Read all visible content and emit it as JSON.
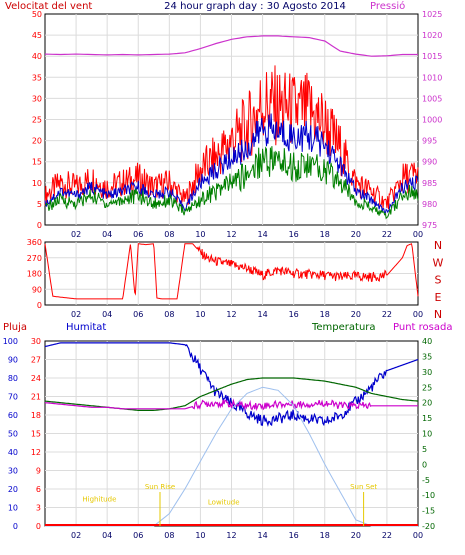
{
  "header": {
    "title": "24 hour graph day : 30 Agosto 2014",
    "left_label": "Velocitat del vent",
    "right_label": "Pressió"
  },
  "colors": {
    "background": "#ffffff",
    "frame": "#000000",
    "grid": "#dcdcdc",
    "wind": "#ff0000",
    "wind_gust": "#ff0000",
    "wind_avg": "#0000cc",
    "wind_low": "#008000",
    "pressure": "#cc33cc",
    "direction": "#ff0000",
    "rain": "#ff0000",
    "humidity": "#0000cc",
    "temperature": "#006600",
    "dewpoint": "#cc00cc",
    "solar": "#9fc0ee",
    "sun_labels": "#e6c800",
    "tick_text": "#000066"
  },
  "time_ticks": [
    "02",
    "04",
    "06",
    "08",
    "10",
    "12",
    "14",
    "16",
    "18",
    "20",
    "22",
    "00"
  ],
  "chart_data": [
    {
      "id": "wind-pressure",
      "type": "line",
      "title": "24 hour graph day : 30 Agosto 2014",
      "ylabel": "Velocitat del vent",
      "y2label": "Pressió",
      "x": [
        0,
        1,
        2,
        3,
        4,
        5,
        6,
        7,
        8,
        9,
        10,
        11,
        12,
        13,
        14,
        15,
        16,
        17,
        18,
        19,
        20,
        21,
        22,
        23,
        24
      ],
      "ylim": [
        0,
        50
      ],
      "y2lim": [
        975,
        1025
      ],
      "y_ticks": [
        "0",
        "5",
        "10",
        "15",
        "20",
        "25",
        "30",
        "35",
        "40",
        "45",
        "50"
      ],
      "y2_ticks": [
        "975",
        "980",
        "985",
        "990",
        "995",
        "1000",
        "1005",
        "1010",
        "1015",
        "1020",
        "1025"
      ],
      "grid": true,
      "series": [
        {
          "role": "gust",
          "values": [
            7,
            10,
            9,
            11,
            9,
            10,
            11,
            9,
            10,
            6,
            13,
            16,
            20,
            23,
            29,
            28,
            27,
            27,
            24,
            18,
            10,
            8,
            5,
            11,
            12
          ]
        },
        {
          "role": "average",
          "values": [
            5,
            8,
            7,
            9,
            7,
            8,
            9,
            7,
            8,
            4,
            10,
            13,
            16,
            18,
            23,
            22,
            21,
            21,
            19,
            14,
            8,
            6,
            3,
            9,
            10
          ]
        },
        {
          "role": "low",
          "values": [
            4,
            6,
            5,
            7,
            5,
            6,
            7,
            5,
            6,
            3,
            6,
            8,
            10,
            12,
            16,
            15,
            14,
            14,
            13,
            10,
            6,
            4,
            2,
            7,
            8
          ]
        },
        {
          "role": "pressure",
          "values": [
            1015.5,
            1015.4,
            1015.5,
            1015.4,
            1015.3,
            1015.4,
            1015.3,
            1015.4,
            1015.5,
            1015.8,
            1016.8,
            1018.0,
            1019.0,
            1019.6,
            1019.8,
            1019.8,
            1019.6,
            1019.4,
            1018.6,
            1016.2,
            1015.5,
            1015.0,
            1015.1,
            1015.4,
            1015.4
          ]
        }
      ]
    },
    {
      "id": "wind-direction",
      "type": "line",
      "x": [
        0,
        0.5,
        1,
        1.5,
        2,
        3,
        4,
        5,
        5.5,
        5.8,
        6,
        6.5,
        7,
        7.2,
        7.5,
        8,
        8.5,
        9,
        9.5,
        10,
        10.5,
        11,
        12,
        13,
        14,
        15,
        16,
        17,
        18,
        19,
        20,
        21,
        22,
        22.5,
        23,
        23.3,
        23.6,
        24
      ],
      "ylim": [
        0,
        360
      ],
      "y_ticks": [
        "0",
        "90",
        "180",
        "270",
        "360"
      ],
      "right_labels": [
        "N",
        "W",
        "S",
        "E",
        "N"
      ],
      "series": [
        {
          "role": "direction",
          "values": [
            350,
            50,
            45,
            40,
            35,
            35,
            35,
            35,
            350,
            40,
            350,
            345,
            350,
            40,
            35,
            35,
            35,
            350,
            350,
            300,
            265,
            250,
            230,
            210,
            170,
            200,
            180,
            175,
            170,
            160,
            165,
            160,
            170,
            220,
            270,
            340,
            350,
            50
          ]
        }
      ]
    },
    {
      "id": "rain-humidity-temp",
      "type": "line",
      "labels": {
        "rain": "Pluja",
        "humidity": "Humitat",
        "temperature": "Temperatura",
        "dewpoint": "Punt rosada"
      },
      "x": [
        0,
        1,
        2,
        3,
        4,
        5,
        6,
        7,
        8,
        9,
        10,
        11,
        12,
        13,
        14,
        15,
        16,
        17,
        18,
        19,
        20,
        21,
        22,
        23,
        24
      ],
      "left_pct_ticks": [
        "0",
        "10",
        "20",
        "30",
        "40",
        "50",
        "60",
        "70",
        "80",
        "90",
        "100"
      ],
      "rain_ticks": [
        "0",
        "3",
        "6",
        "9",
        "12",
        "15",
        "18",
        "21",
        "24",
        "27",
        "30"
      ],
      "temp_ticks": [
        "-20",
        "-15",
        "-10",
        "-5",
        "0",
        "5",
        "10",
        "15",
        "20",
        "25",
        "30",
        "35",
        "40"
      ],
      "humidity_lim": [
        0,
        100
      ],
      "temp_lim": [
        -20,
        40
      ],
      "series": [
        {
          "role": "humidity",
          "values": [
            97,
            99,
            99,
            99,
            99,
            99,
            99,
            99,
            99,
            98,
            85,
            72,
            66,
            61,
            57,
            58,
            60,
            58,
            56,
            60,
            67,
            75,
            84,
            87,
            90
          ]
        },
        {
          "role": "temperature",
          "values": [
            20.5,
            20,
            19.5,
            19,
            18.5,
            18,
            17.5,
            17.5,
            18,
            19,
            22,
            24,
            26,
            27.5,
            28,
            28,
            28,
            27.5,
            27,
            26,
            25,
            23,
            22,
            21,
            20.5
          ]
        },
        {
          "role": "dewpoint",
          "values": [
            20,
            19.5,
            19,
            18.5,
            18.5,
            18,
            18,
            18,
            18,
            18,
            19.5,
            20,
            19.5,
            19,
            19,
            19.5,
            19.5,
            19.5,
            20,
            19,
            19,
            19,
            19,
            19,
            19
          ]
        },
        {
          "role": "solar",
          "values": [
            -20,
            -20,
            -20,
            -20,
            -20,
            -20,
            -20,
            -20,
            -16,
            -8,
            1,
            10,
            18,
            23,
            25,
            24,
            19,
            10,
            0,
            -9,
            -18,
            -20,
            -20,
            -20,
            -20
          ]
        },
        {
          "role": "rain",
          "values": [
            0,
            0,
            0,
            0,
            0,
            0,
            0,
            0,
            0,
            0,
            0,
            0,
            0,
            0,
            0,
            0,
            0,
            0,
            0,
            0,
            0,
            0,
            0,
            0,
            0
          ]
        }
      ],
      "annotations": [
        {
          "text": "Sun Rise",
          "hour": 7.4,
          "temp": -8
        },
        {
          "text": "Sun Set",
          "hour": 20.5,
          "temp": -8
        },
        {
          "text": "Highitude",
          "hour": 3.5,
          "temp": -12
        },
        {
          "text": "Lowitude",
          "hour": 11.5,
          "temp": -13
        }
      ]
    }
  ]
}
